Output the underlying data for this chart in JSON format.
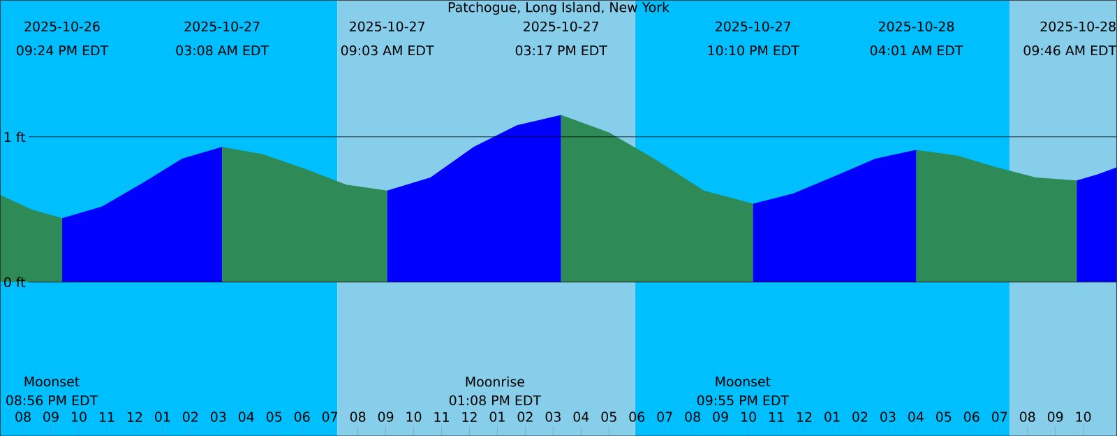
{
  "chart_data": {
    "type": "area",
    "title": "Patchogue, Long Island, New York",
    "xlim": [
      "2025-10-26T19:11",
      "2025-10-28T11:12"
    ],
    "ylim": [
      -1.06,
      1.94
    ],
    "xticks": [
      {
        "value": "2025-10-26T20:00",
        "label": "08"
      },
      {
        "value": "2025-10-26T21:00",
        "label": "09"
      },
      {
        "value": "2025-10-26T22:00",
        "label": "10"
      },
      {
        "value": "2025-10-26T23:00",
        "label": "11"
      },
      {
        "value": "2025-10-27T00:00",
        "label": "12"
      },
      {
        "value": "2025-10-27T01:00",
        "label": "01"
      },
      {
        "value": "2025-10-27T02:00",
        "label": "02"
      },
      {
        "value": "2025-10-27T03:00",
        "label": "03"
      },
      {
        "value": "2025-10-27T04:00",
        "label": "04"
      },
      {
        "value": "2025-10-27T05:00",
        "label": "05"
      },
      {
        "value": "2025-10-27T06:00",
        "label": "06"
      },
      {
        "value": "2025-10-27T07:00",
        "label": "07"
      },
      {
        "value": "2025-10-27T08:00",
        "label": "08"
      },
      {
        "value": "2025-10-27T09:00",
        "label": "09"
      },
      {
        "value": "2025-10-27T10:00",
        "label": "10"
      },
      {
        "value": "2025-10-27T11:00",
        "label": "11"
      },
      {
        "value": "2025-10-27T12:00",
        "label": "12"
      },
      {
        "value": "2025-10-27T13:00",
        "label": "01"
      },
      {
        "value": "2025-10-27T14:00",
        "label": "02"
      },
      {
        "value": "2025-10-27T15:00",
        "label": "03"
      },
      {
        "value": "2025-10-27T16:00",
        "label": "04"
      },
      {
        "value": "2025-10-27T17:00",
        "label": "05"
      },
      {
        "value": "2025-10-27T18:00",
        "label": "06"
      },
      {
        "value": "2025-10-27T19:00",
        "label": "07"
      },
      {
        "value": "2025-10-27T20:00",
        "label": "08"
      },
      {
        "value": "2025-10-27T21:00",
        "label": "09"
      },
      {
        "value": "2025-10-27T22:00",
        "label": "10"
      },
      {
        "value": "2025-10-27T23:00",
        "label": "11"
      },
      {
        "value": "2025-10-28T00:00",
        "label": "12"
      },
      {
        "value": "2025-10-28T01:00",
        "label": "01"
      },
      {
        "value": "2025-10-28T02:00",
        "label": "02"
      },
      {
        "value": "2025-10-28T03:00",
        "label": "03"
      },
      {
        "value": "2025-10-28T04:00",
        "label": "04"
      },
      {
        "value": "2025-10-28T05:00",
        "label": "05"
      },
      {
        "value": "2025-10-28T06:00",
        "label": "06"
      },
      {
        "value": "2025-10-28T07:00",
        "label": "07"
      },
      {
        "value": "2025-10-28T08:00",
        "label": "08"
      },
      {
        "value": "2025-10-28T09:00",
        "label": "09"
      },
      {
        "value": "2025-10-28T10:00",
        "label": "10"
      }
    ],
    "series": [
      {
        "color": "#2e8b57",
        "x": [
          "2025-10-26T19:11",
          "2025-10-26T20:18",
          "2025-10-26T21:24"
        ],
        "values": [
          0.6,
          0.5,
          0.44
        ]
      },
      {
        "color": "#0000ff",
        "x": [
          "2025-10-26T21:24",
          "2025-10-26T22:50",
          "2025-10-27T00:16",
          "2025-10-27T01:42",
          "2025-10-27T03:08"
        ],
        "values": [
          0.44,
          0.52,
          0.68,
          0.85,
          0.93
        ]
      },
      {
        "color": "#2e8b57",
        "x": [
          "2025-10-27T03:08",
          "2025-10-27T04:36",
          "2025-10-27T06:06",
          "2025-10-27T07:36",
          "2025-10-27T09:03"
        ],
        "values": [
          0.93,
          0.88,
          0.78,
          0.67,
          0.63
        ]
      },
      {
        "color": "#0000ff",
        "x": [
          "2025-10-27T09:03",
          "2025-10-27T10:36",
          "2025-10-27T12:09",
          "2025-10-27T13:42",
          "2025-10-27T15:17"
        ],
        "values": [
          0.63,
          0.72,
          0.93,
          1.08,
          1.15
        ]
      },
      {
        "color": "#2e8b57",
        "x": [
          "2025-10-27T15:17",
          "2025-10-27T17:00",
          "2025-10-27T18:42",
          "2025-10-27T20:24",
          "2025-10-27T22:10"
        ],
        "values": [
          1.15,
          1.03,
          0.84,
          0.63,
          0.54
        ]
      },
      {
        "color": "#0000ff",
        "x": [
          "2025-10-27T22:10",
          "2025-10-27T23:36",
          "2025-10-28T01:06",
          "2025-10-28T02:33",
          "2025-10-28T04:01"
        ],
        "values": [
          0.54,
          0.61,
          0.73,
          0.85,
          0.91
        ]
      },
      {
        "color": "#2e8b57",
        "x": [
          "2025-10-28T04:01",
          "2025-10-28T05:30",
          "2025-10-28T06:54",
          "2025-10-28T08:18",
          "2025-10-28T09:46"
        ],
        "values": [
          0.91,
          0.87,
          0.79,
          0.72,
          0.7
        ]
      },
      {
        "color": "#0000ff",
        "x": [
          "2025-10-28T09:46",
          "2025-10-28T10:30",
          "2025-10-28T11:12"
        ],
        "values": [
          0.7,
          0.74,
          0.79
        ]
      }
    ],
    "bands": [
      {
        "axis": "x",
        "from": "2025-10-26T19:11",
        "to": "2025-10-27T07:16",
        "color": "#00bfff"
      },
      {
        "axis": "x",
        "from": "2025-10-27T07:16",
        "to": "2025-10-27T17:56",
        "color": "#87ceeb"
      },
      {
        "axis": "x",
        "from": "2025-10-27T17:56",
        "to": "2025-10-28T07:22",
        "color": "#00bfff"
      },
      {
        "axis": "x",
        "from": "2025-10-28T07:22",
        "to": "2025-10-28T11:12",
        "color": "#87ceeb"
      }
    ],
    "ref_lines": [
      {
        "axis": "y",
        "value": 1,
        "label": "1 ft"
      },
      {
        "axis": "y",
        "value": 0,
        "label": "0 ft"
      }
    ],
    "annotations": [
      "2025-10-26",
      "09:24 PM EDT",
      "2025-10-27",
      "03:08 AM EDT",
      "2025-10-27",
      "09:03 AM EDT",
      "2025-10-27",
      "03:17 PM EDT",
      "2025-10-27",
      "10:10 PM EDT",
      "2025-10-28",
      "04:01 AM EDT",
      "2025-10-28",
      "09:46 AM EDT",
      "Moonset",
      "08:56 PM EDT",
      "Moonrise",
      "01:08 PM EDT",
      "Moonset",
      "09:55 PM EDT"
    ]
  }
}
